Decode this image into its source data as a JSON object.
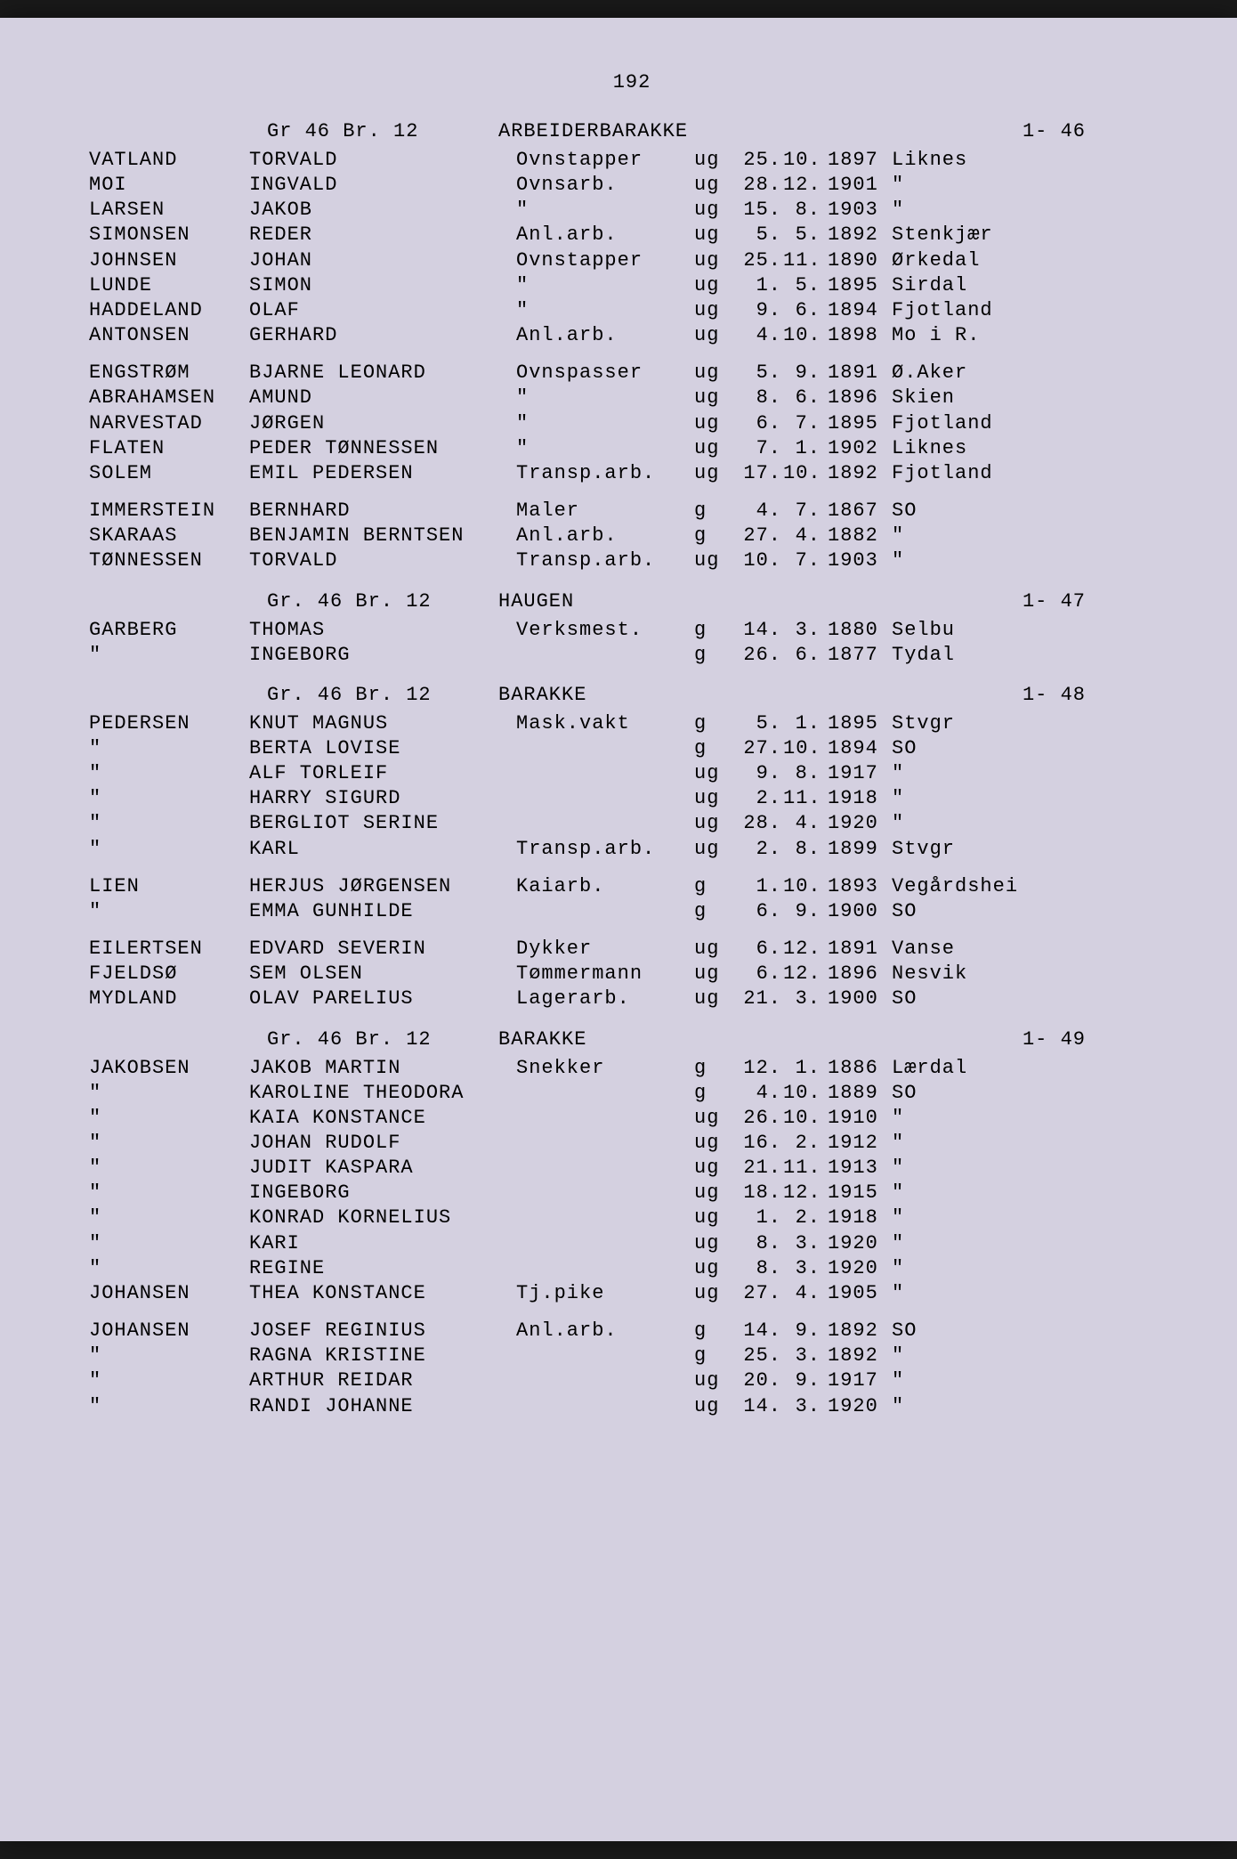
{
  "page_number": "192",
  "font_family": "Courier New, Courier, monospace",
  "font_size_pt": 16,
  "text_color": "#1a1a1a",
  "background_color": "#d4d0e0",
  "ditto_mark": "\"",
  "sections": [
    {
      "header_gr": "Gr 46 Br. 12",
      "header_loc": "ARBEIDERBARAKKE",
      "header_ref": "1- 46",
      "groups": [
        [
          {
            "surname": "VATLAND",
            "given": "TORVALD",
            "occ": "Ovnstapper",
            "ms": "ug",
            "d": "25.",
            "m": "10.",
            "y": "1897",
            "place": "Liknes"
          },
          {
            "surname": "MOI",
            "given": "INGVALD",
            "occ": "Ovnsarb.",
            "ms": "ug",
            "d": "28.",
            "m": "12.",
            "y": "1901",
            "place": "\""
          },
          {
            "surname": "LARSEN",
            "given": "JAKOB",
            "occ": "\"",
            "ms": "ug",
            "d": "15.",
            "m": "8.",
            "y": "1903",
            "place": "\""
          },
          {
            "surname": "SIMONSEN",
            "given": "REDER",
            "occ": "Anl.arb.",
            "ms": "ug",
            "d": "5.",
            "m": "5.",
            "y": "1892",
            "place": "Stenkjær"
          },
          {
            "surname": "JOHNSEN",
            "given": "JOHAN",
            "occ": "Ovnstapper",
            "ms": "ug",
            "d": "25.",
            "m": "11.",
            "y": "1890",
            "place": "Ørkedal"
          },
          {
            "surname": "LUNDE",
            "given": "SIMON",
            "occ": "\"",
            "ms": "ug",
            "d": "1.",
            "m": "5.",
            "y": "1895",
            "place": "Sirdal"
          },
          {
            "surname": "HADDELAND",
            "given": "OLAF",
            "occ": "\"",
            "ms": "ug",
            "d": "9.",
            "m": "6.",
            "y": "1894",
            "place": "Fjotland"
          },
          {
            "surname": "ANTONSEN",
            "given": "GERHARD",
            "occ": "Anl.arb.",
            "ms": "ug",
            "d": "4.",
            "m": "10.",
            "y": "1898",
            "place": "Mo i R."
          }
        ],
        [
          {
            "surname": "ENGSTRØM",
            "given": "BJARNE LEONARD",
            "occ": "Ovnspasser",
            "ms": "ug",
            "d": "5.",
            "m": "9.",
            "y": "1891",
            "place": "Ø.Aker"
          },
          {
            "surname": "ABRAHAMSEN",
            "given": "AMUND",
            "occ": "\"",
            "ms": "ug",
            "d": "8.",
            "m": "6.",
            "y": "1896",
            "place": "Skien"
          },
          {
            "surname": "NARVESTAD",
            "given": "JØRGEN",
            "occ": "\"",
            "ms": "ug",
            "d": "6.",
            "m": "7.",
            "y": "1895",
            "place": "Fjotland"
          },
          {
            "surname": "FLATEN",
            "given": "PEDER TØNNESSEN",
            "occ": "\"",
            "ms": "ug",
            "d": "7.",
            "m": "1.",
            "y": "1902",
            "place": "Liknes"
          },
          {
            "surname": "SOLEM",
            "given": "EMIL PEDERSEN",
            "occ": "Transp.arb.",
            "ms": "ug",
            "d": "17.",
            "m": "10.",
            "y": "1892",
            "place": "Fjotland"
          }
        ],
        [
          {
            "surname": "IMMERSTEIN",
            "given": "BERNHARD",
            "occ": "Maler",
            "ms": "g",
            "d": "4.",
            "m": "7.",
            "y": "1867",
            "place": "SO"
          },
          {
            "surname": "SKARAAS",
            "given": "BENJAMIN BERNTSEN",
            "occ": "Anl.arb.",
            "ms": "g",
            "d": "27.",
            "m": "4.",
            "y": "1882",
            "place": "\""
          },
          {
            "surname": "TØNNESSEN",
            "given": "TORVALD",
            "occ": "Transp.arb.",
            "ms": "ug",
            "d": "10.",
            "m": "7.",
            "y": "1903",
            "place": "\""
          }
        ]
      ]
    },
    {
      "header_gr": "Gr. 46 Br. 12",
      "header_loc": "HAUGEN",
      "header_ref": "1- 47",
      "groups": [
        [
          {
            "surname": "GARBERG",
            "given": "THOMAS",
            "occ": "Verksmest.",
            "ms": "g",
            "d": "14.",
            "m": "3.",
            "y": "1880",
            "place": "Selbu"
          },
          {
            "surname": "\"",
            "given": "INGEBORG",
            "occ": "",
            "ms": "g",
            "d": "26.",
            "m": "6.",
            "y": "1877",
            "place": "Tydal"
          }
        ]
      ]
    },
    {
      "header_gr": "Gr. 46 Br. 12",
      "header_loc": "BARAKKE",
      "header_ref": "1- 48",
      "groups": [
        [
          {
            "surname": "PEDERSEN",
            "given": "KNUT MAGNUS",
            "occ": "Mask.vakt",
            "ms": "g",
            "d": "5.",
            "m": "1.",
            "y": "1895",
            "place": "Stvgr"
          },
          {
            "surname": "\"",
            "given": "BERTA LOVISE",
            "occ": "",
            "ms": "g",
            "d": "27.",
            "m": "10.",
            "y": "1894",
            "place": "SO"
          },
          {
            "surname": "\"",
            "given": "ALF TORLEIF",
            "occ": "",
            "ms": "ug",
            "d": "9.",
            "m": "8.",
            "y": "1917",
            "place": "\""
          },
          {
            "surname": "\"",
            "given": "HARRY SIGURD",
            "occ": "",
            "ms": "ug",
            "d": "2.",
            "m": "11.",
            "y": "1918",
            "place": "\""
          },
          {
            "surname": "\"",
            "given": "BERGLIOT SERINE",
            "occ": "",
            "ms": "ug",
            "d": "28.",
            "m": "4.",
            "y": "1920",
            "place": "\""
          },
          {
            "surname": "\"",
            "given": "KARL",
            "occ": "Transp.arb.",
            "ms": "ug",
            "d": "2.",
            "m": "8.",
            "y": "1899",
            "place": "Stvgr"
          }
        ],
        [
          {
            "surname": "LIEN",
            "given": "HERJUS JØRGENSEN",
            "occ": "Kaiarb.",
            "ms": "g",
            "d": "1.",
            "m": "10.",
            "y": "1893",
            "place": "Vegårdshei"
          },
          {
            "surname": "\"",
            "given": "EMMA GUNHILDE",
            "occ": "",
            "ms": "g",
            "d": "6.",
            "m": "9.",
            "y": "1900",
            "place": "SO"
          }
        ],
        [
          {
            "surname": "EILERTSEN",
            "given": "EDVARD SEVERIN",
            "occ": "Dykker",
            "ms": "ug",
            "d": "6.",
            "m": "12.",
            "y": "1891",
            "place": "Vanse"
          },
          {
            "surname": "FJELDSØ",
            "given": "SEM OLSEN",
            "occ": "Tømmermann",
            "ms": "ug",
            "d": "6.",
            "m": "12.",
            "y": "1896",
            "place": "Nesvik"
          },
          {
            "surname": "MYDLAND",
            "given": "OLAV PARELIUS",
            "occ": "Lagerarb.",
            "ms": "ug",
            "d": "21.",
            "m": "3.",
            "y": "1900",
            "place": "SO"
          }
        ]
      ]
    },
    {
      "header_gr": "Gr. 46 Br. 12",
      "header_loc": "BARAKKE",
      "header_ref": "1- 49",
      "groups": [
        [
          {
            "surname": "JAKOBSEN",
            "given": "JAKOB MARTIN",
            "occ": "Snekker",
            "ms": "g",
            "d": "12.",
            "m": "1.",
            "y": "1886",
            "place": "Lærdal"
          },
          {
            "surname": "\"",
            "given": "KAROLINE THEODORA",
            "occ": "",
            "ms": "g",
            "d": "4.",
            "m": "10.",
            "y": "1889",
            "place": "SO"
          },
          {
            "surname": "\"",
            "given": "KAIA KONSTANCE",
            "occ": "",
            "ms": "ug",
            "d": "26.",
            "m": "10.",
            "y": "1910",
            "place": "\""
          },
          {
            "surname": "\"",
            "given": "JOHAN RUDOLF",
            "occ": "",
            "ms": "ug",
            "d": "16.",
            "m": "2.",
            "y": "1912",
            "place": "\""
          },
          {
            "surname": "\"",
            "given": "JUDIT KASPARA",
            "occ": "",
            "ms": "ug",
            "d": "21.",
            "m": "11.",
            "y": "1913",
            "place": "\""
          },
          {
            "surname": "\"",
            "given": "INGEBORG",
            "occ": "",
            "ms": "ug",
            "d": "18.",
            "m": "12.",
            "y": "1915",
            "place": "\""
          },
          {
            "surname": "\"",
            "given": "KONRAD KORNELIUS",
            "occ": "",
            "ms": "ug",
            "d": "1.",
            "m": "2.",
            "y": "1918",
            "place": "\""
          },
          {
            "surname": "\"",
            "given": "KARI",
            "occ": "",
            "ms": "ug",
            "d": "8.",
            "m": "3.",
            "y": "1920",
            "place": "\""
          },
          {
            "surname": "\"",
            "given": "REGINE",
            "occ": "",
            "ms": "ug",
            "d": "8.",
            "m": "3.",
            "y": "1920",
            "place": "\""
          },
          {
            "surname": "JOHANSEN",
            "given": "THEA KONSTANCE",
            "occ": "Tj.pike",
            "ms": "ug",
            "d": "27.",
            "m": "4.",
            "y": "1905",
            "place": "\""
          }
        ],
        [
          {
            "surname": "JOHANSEN",
            "given": "JOSEF REGINIUS",
            "occ": "Anl.arb.",
            "ms": "g",
            "d": "14.",
            "m": "9.",
            "y": "1892",
            "place": "SO"
          },
          {
            "surname": "\"",
            "given": "RAGNA KRISTINE",
            "occ": "",
            "ms": "g",
            "d": "25.",
            "m": "3.",
            "y": "1892",
            "place": "\""
          },
          {
            "surname": "\"",
            "given": "ARTHUR REIDAR",
            "occ": "",
            "ms": "ug",
            "d": "20.",
            "m": "9.",
            "y": "1917",
            "place": "\""
          },
          {
            "surname": "\"",
            "given": "RANDI JOHANNE",
            "occ": "",
            "ms": "ug",
            "d": "14.",
            "m": "3.",
            "y": "1920",
            "place": "\""
          }
        ]
      ]
    }
  ]
}
